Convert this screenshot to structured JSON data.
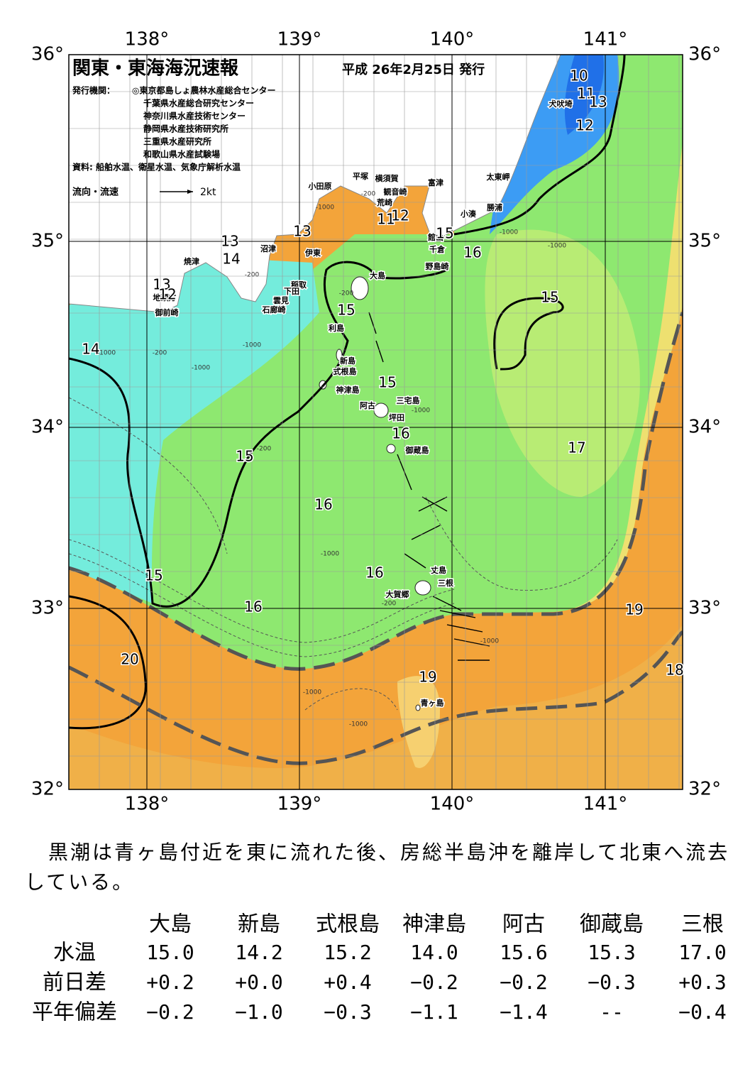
{
  "map": {
    "title": "関東・東海海況速報",
    "date": "平成 26年2月25日 発行",
    "issuer_label": "発行機関：",
    "issuers": [
      "◎東京都島しょ農林水産総合センター",
      "千葉県水産総合研究センター",
      "神奈川県水産技術センター",
      "静岡県水産技術研究所",
      "三重県水産研究所",
      "和歌山県水産試験場"
    ],
    "source": "資料: 船舶水温、衛星水温、気象庁解析水温",
    "flow_legend": "流向・流速",
    "flow_scale": "2kt",
    "lon_labels": [
      "138°",
      "139°",
      "140°",
      "141°"
    ],
    "lat_labels": [
      "36°",
      "35°",
      "34°",
      "33°",
      "32°"
    ],
    "places": [
      "犬吠埼",
      "太東岬",
      "富津",
      "勝浦",
      "小湊",
      "館山",
      "千倉",
      "野島崎",
      "横須賀",
      "観音崎",
      "平塚",
      "荒崎",
      "小田原",
      "沼津",
      "伊東",
      "焼津",
      "稲取",
      "下田",
      "雲見",
      "石廊崎",
      "大島",
      "地頭方",
      "御前崎",
      "利島",
      "新島",
      "式根島",
      "神津島",
      "阿古",
      "三宅島",
      "坪田",
      "御蔵島",
      "丈島",
      "三根",
      "大賀郷",
      "青ヶ島"
    ],
    "isotherm_labels": [
      "10",
      "11",
      "13",
      "12",
      "13",
      "13",
      "14",
      "15",
      "16",
      "15",
      "15",
      "13",
      "12",
      "14",
      "15",
      "16",
      "17",
      "15",
      "16",
      "16",
      "15",
      "16",
      "19",
      "20",
      "19",
      "18",
      "11",
      "12"
    ],
    "depth_labels": [
      "-200",
      "-200",
      "-1000",
      "-1000",
      "-200",
      "-1000",
      "-1000",
      "-200",
      "-1000",
      "-1000",
      "-1000",
      "-1000",
      "-1000",
      "-200",
      "-1000",
      "-200",
      "-1000"
    ]
  },
  "summary": "黒潮は青ヶ島付近を東に流れた後、房総半島沖を離岸して北東へ流去している。",
  "table": {
    "columns": [
      "大島",
      "新島",
      "式根島",
      "神津島",
      "阿古",
      "御蔵島",
      "三根"
    ],
    "rows": [
      {
        "label": "水温",
        "values": [
          "15.0",
          "14.2",
          "15.2",
          "14.0",
          "15.6",
          "15.3",
          "17.0"
        ]
      },
      {
        "label": "前日差",
        "values": [
          "+0.2",
          "+0.0",
          "+0.4",
          "−0.2",
          "−0.2",
          "−0.3",
          "+0.3"
        ]
      },
      {
        "label": "平年偏差",
        "values": [
          "−0.2",
          "−1.0",
          "−0.3",
          "−1.1",
          "−1.4",
          "--",
          "−0.4"
        ]
      }
    ]
  }
}
